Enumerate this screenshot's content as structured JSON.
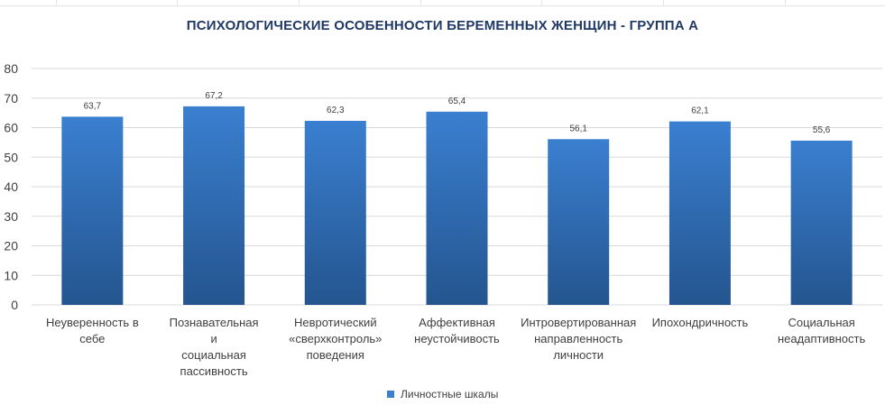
{
  "chart_data": {
    "type": "bar",
    "title": "ПСИХОЛОГИЧЕСКИЕ ОСОБЕННОСТИ БЕРЕМЕННЫХ ЖЕНЩИН - ГРУППА А",
    "categories": [
      [
        "Неуверенность в",
        "себе"
      ],
      [
        "Познавательная",
        "и",
        "социальная",
        "пассивность"
      ],
      [
        "Невротический",
        "«сверхконтроль»",
        "поведения"
      ],
      [
        "Аффективная",
        "неустойчивость"
      ],
      [
        "Интровертированная",
        "направленность",
        "личности"
      ],
      [
        "Ипохондричность"
      ],
      [
        "Социальная",
        "неадаптивность"
      ]
    ],
    "series": [
      {
        "name": "Личностные шкалы",
        "values": [
          63.7,
          67.2,
          62.3,
          65.4,
          56.1,
          62.1,
          55.6
        ],
        "labels": [
          "63,7",
          "67,2",
          "62,3",
          "65,4",
          "56,1",
          "62,1",
          "55,6"
        ]
      }
    ],
    "ylim": [
      0,
      80
    ],
    "yticks": [
      0,
      10,
      20,
      30,
      40,
      50,
      60,
      70,
      80
    ],
    "grid": true,
    "legend": "bottom",
    "colors": {
      "bar_top": "#3a7fd0",
      "bar_bottom": "#24558f",
      "grid": "#d9d9d9",
      "title": "#1f3864",
      "text": "#404040"
    }
  }
}
